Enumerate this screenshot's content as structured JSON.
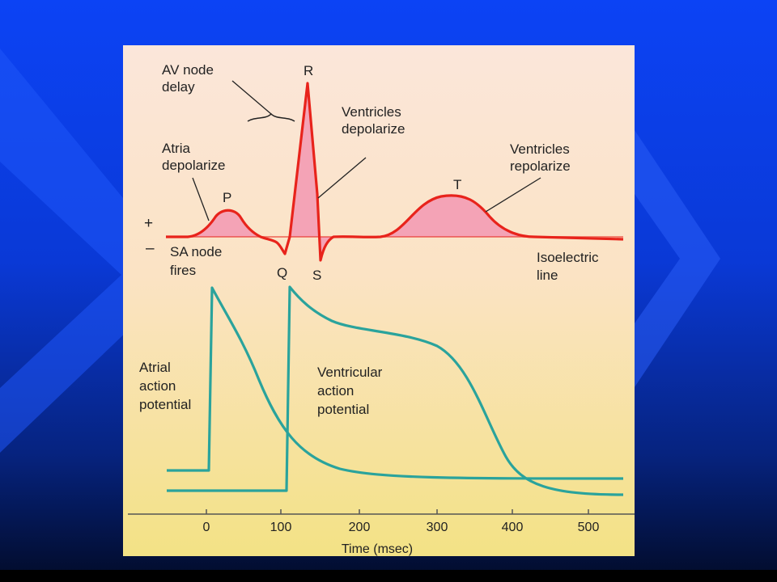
{
  "figure": {
    "labels": {
      "av_node_delay": [
        "AV node",
        "delay"
      ],
      "r": "R",
      "ventricles_depolarize": [
        "Ventricles",
        "depolarize"
      ],
      "atria_depolarize": [
        "Atria",
        "depolarize"
      ],
      "p": "P",
      "t": "T",
      "ventricles_repolarize": [
        "Ventricles",
        "repolarize"
      ],
      "plus": "+",
      "minus": "–",
      "sa_node_fires": [
        "SA node",
        "fires"
      ],
      "q": "Q",
      "s": "S",
      "isoelectric_line": [
        "Isoelectric",
        "line"
      ],
      "atrial_action_potential": [
        "Atrial",
        "action",
        "potential"
      ],
      "ventricular_action_potential": [
        "Ventricular",
        "action",
        "potential"
      ]
    },
    "x_axis": {
      "ticks": [
        "0",
        "100",
        "200",
        "300",
        "400",
        "500"
      ],
      "label": "Time (msec)"
    }
  },
  "colors": {
    "background_top": "#0c43f5",
    "background_bottom": "#020b28",
    "ecg_line": "#e8231b",
    "ecg_fill": "#f4a3b6",
    "action_potential_line": "#2aa39c",
    "panel_top": "#fbe4d6",
    "panel_bottom": "#f4e48a"
  }
}
